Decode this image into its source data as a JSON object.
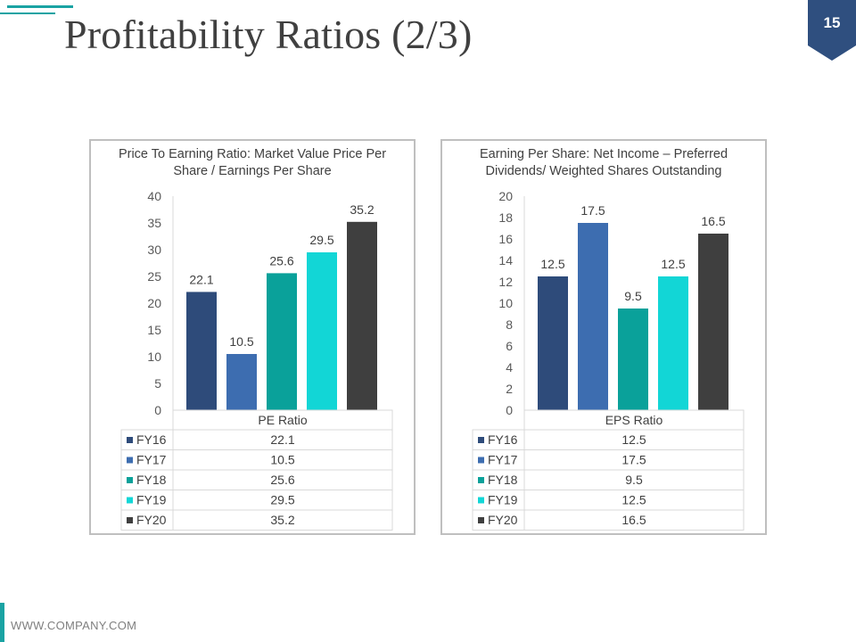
{
  "slide": {
    "title": "Profitability Ratios (2/3)",
    "page_number": "15",
    "footer": "WWW.COMPANY.COM"
  },
  "colors": {
    "accent": "#1aa3a3",
    "badge": "#2f4f7f",
    "series": [
      "#2e4b7a",
      "#3d6db0",
      "#0aa19a",
      "#12d6d6",
      "#3f3f3f"
    ]
  },
  "chart_data": [
    {
      "type": "bar",
      "title_line1": "Price To Earning Ratio: Market Value Price Per",
      "title_line2": "Share / Earnings Per Share",
      "category": "PE Ratio",
      "series_names": [
        "FY16",
        "FY17",
        "FY18",
        "FY19",
        "FY20"
      ],
      "values": [
        22.1,
        10.5,
        25.6,
        29.5,
        35.2
      ],
      "value_labels": [
        "22.1",
        "10.5",
        "25.6",
        "29.5",
        "35.2"
      ],
      "ylim": [
        0,
        40
      ],
      "yticks": [
        "0",
        "5",
        "10",
        "15",
        "20",
        "25",
        "30",
        "35",
        "40"
      ],
      "legend": "data-table"
    },
    {
      "type": "bar",
      "title_line1": "Earning Per Share: Net Income – Preferred",
      "title_line2": "Dividends/ Weighted Shares Outstanding",
      "category": "EPS Ratio",
      "series_names": [
        "FY16",
        "FY17",
        "FY18",
        "FY19",
        "FY20"
      ],
      "values": [
        12.5,
        17.5,
        9.5,
        12.5,
        16.5
      ],
      "value_labels": [
        "12.5",
        "17.5",
        "9.5",
        "12.5",
        "16.5"
      ],
      "ylim": [
        0,
        20
      ],
      "yticks": [
        "0",
        "2",
        "4",
        "6",
        "8",
        "10",
        "12",
        "14",
        "16",
        "18",
        "20"
      ],
      "legend": "data-table"
    }
  ]
}
